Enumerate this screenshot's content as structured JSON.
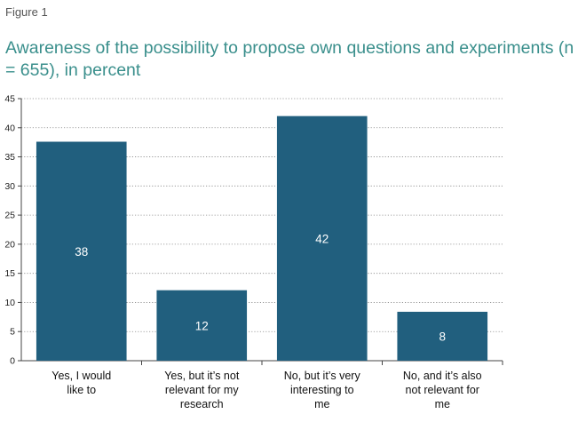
{
  "figure_label": "Figure 1",
  "title": "Awareness of the possibility to propose own questions and experiments (n = 655), in percent",
  "colors": {
    "bar": "#215f7e",
    "title": "#3a8f8c",
    "grid": "#888888",
    "axis": "#444444"
  },
  "chart_data": {
    "type": "bar",
    "title": "Awareness of the possibility to propose own questions and experiments (n = 655), in percent",
    "xlabel": "",
    "ylabel": "",
    "ylim": [
      0,
      45
    ],
    "yticks": [
      0,
      5,
      10,
      15,
      20,
      25,
      30,
      35,
      40,
      45
    ],
    "grid": true,
    "categories": [
      [
        "Yes, I would",
        "like to"
      ],
      [
        "Yes, but it’s not",
        "relevant for my",
        "research"
      ],
      [
        "No, but it’s very",
        "interesting to",
        "me"
      ],
      [
        "No, and it’s also",
        "not relevant for",
        "me"
      ]
    ],
    "values": [
      37.6,
      12.1,
      42.0,
      8.4
    ],
    "data_labels": [
      "38",
      "12",
      "42",
      "8"
    ]
  }
}
